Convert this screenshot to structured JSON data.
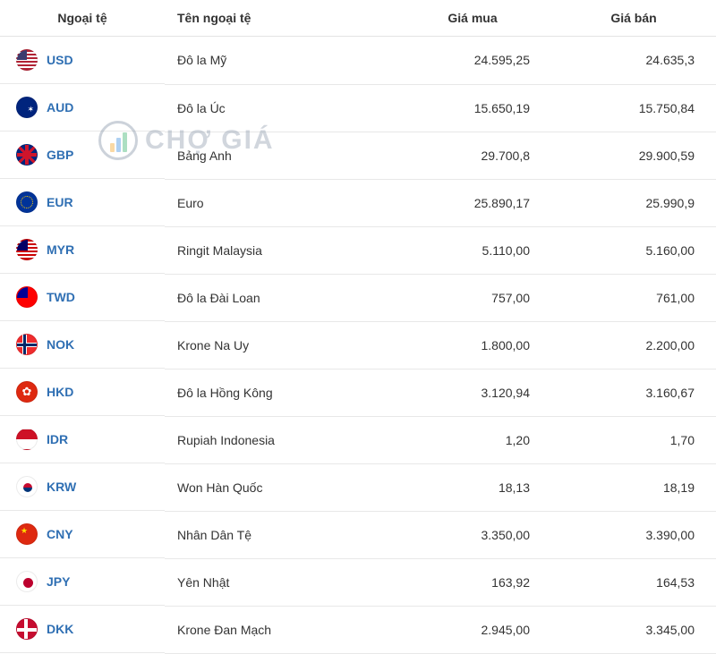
{
  "headers": {
    "currency": "Ngoại tệ",
    "name": "Tên ngoại tệ",
    "buy": "Giá mua",
    "sell": "Giá bán"
  },
  "watermark_text": "CHỢ GIÁ",
  "colors": {
    "link": "#2f6fb3",
    "border": "#e8e8e8",
    "text": "#333333"
  },
  "rows": [
    {
      "code": "USD",
      "flag_class": "flag-usd",
      "name": "Đô la Mỹ",
      "buy": "24.595,25",
      "sell": "24.635,3"
    },
    {
      "code": "AUD",
      "flag_class": "flag-aud",
      "name": "Đô la Úc",
      "buy": "15.650,19",
      "sell": "15.750,84"
    },
    {
      "code": "GBP",
      "flag_class": "flag-gbp",
      "name": "Bảng Anh",
      "buy": "29.700,8",
      "sell": "29.900,59"
    },
    {
      "code": "EUR",
      "flag_class": "flag-eur",
      "name": "Euro",
      "buy": "25.890,17",
      "sell": "25.990,9"
    },
    {
      "code": "MYR",
      "flag_class": "flag-myr",
      "name": "Ringit Malaysia",
      "buy": "5.110,00",
      "sell": "5.160,00"
    },
    {
      "code": "TWD",
      "flag_class": "flag-twd",
      "name": "Đô la Đài Loan",
      "buy": "757,00",
      "sell": "761,00"
    },
    {
      "code": "NOK",
      "flag_class": "flag-nok",
      "name": "Krone Na Uy",
      "buy": "1.800,00",
      "sell": "2.200,00"
    },
    {
      "code": "HKD",
      "flag_class": "flag-hkd",
      "name": "Đô la Hồng Kông",
      "buy": "3.120,94",
      "sell": "3.160,67"
    },
    {
      "code": "IDR",
      "flag_class": "flag-idr",
      "name": "Rupiah Indonesia",
      "buy": "1,20",
      "sell": "1,70"
    },
    {
      "code": "KRW",
      "flag_class": "flag-krw",
      "name": "Won Hàn Quốc",
      "buy": "18,13",
      "sell": "18,19"
    },
    {
      "code": "CNY",
      "flag_class": "flag-cny",
      "name": "Nhân Dân Tệ",
      "buy": "3.350,00",
      "sell": "3.390,00"
    },
    {
      "code": "JPY",
      "flag_class": "flag-jpy",
      "name": "Yên Nhật",
      "buy": "163,92",
      "sell": "164,53"
    },
    {
      "code": "DKK",
      "flag_class": "flag-dkk",
      "name": "Krone Đan Mạch",
      "buy": "2.945,00",
      "sell": "3.345,00"
    }
  ]
}
